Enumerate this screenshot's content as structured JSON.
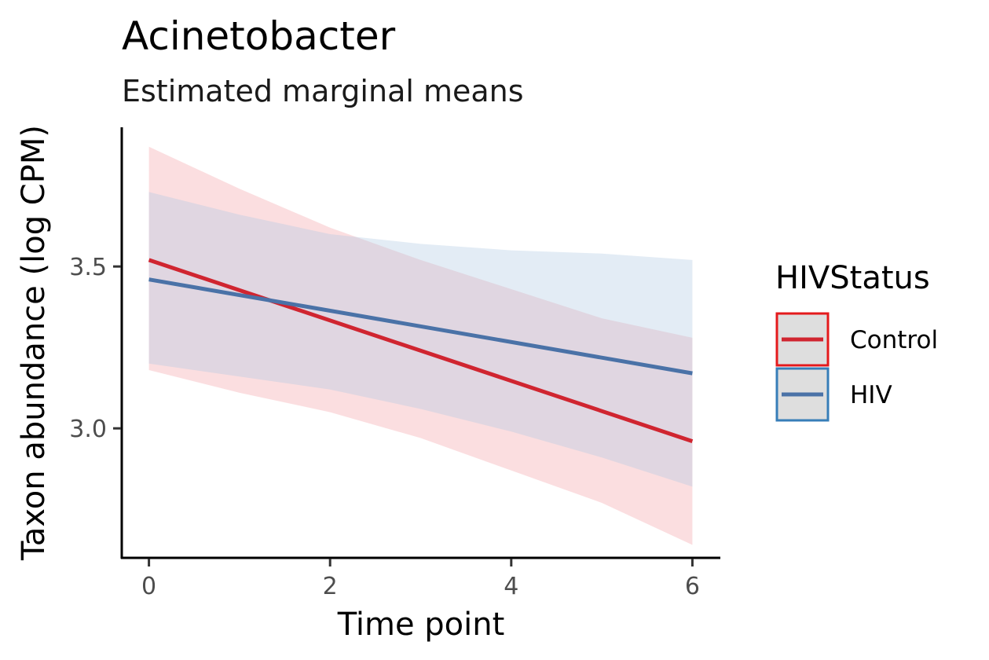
{
  "chart_data": {
    "type": "line",
    "title": "Acinetobacter",
    "subtitle": "Estimated marginal means",
    "xlabel": "Time point",
    "ylabel": "Taxon abundance (log CPM)",
    "xlim": [
      -0.3,
      6.3
    ],
    "ylim": [
      2.6,
      3.93
    ],
    "x_ticks": [
      0,
      2,
      4,
      6
    ],
    "x_tick_labels": [
      "0",
      "2",
      "4",
      "6"
    ],
    "y_ticks": [
      3.0,
      3.5
    ],
    "y_tick_labels": [
      "3.0",
      "3.5"
    ],
    "grid": false,
    "legend": {
      "title": "HIVStatus",
      "position": "right"
    },
    "series": [
      {
        "name": "Control",
        "color": "#d02530",
        "ribbon_color": "#f4a0a6",
        "legend_border": "#e41a1c",
        "x": [
          0,
          6
        ],
        "y": [
          3.52,
          2.96
        ],
        "ribbon_x": [
          0,
          1,
          2,
          3,
          4,
          5,
          6
        ],
        "ribbon_lower": [
          3.18,
          3.11,
          3.05,
          2.97,
          2.87,
          2.77,
          2.64
        ],
        "ribbon_upper": [
          3.87,
          3.74,
          3.62,
          3.52,
          3.43,
          3.34,
          3.28
        ]
      },
      {
        "name": "HIV",
        "color": "#4a72a7",
        "ribbon_color": "#aec9e2",
        "legend_border": "#377eb8",
        "x": [
          0,
          6
        ],
        "y": [
          3.46,
          3.17
        ],
        "ribbon_x": [
          0,
          1,
          2,
          3,
          4,
          5,
          6
        ],
        "ribbon_lower": [
          3.2,
          3.16,
          3.12,
          3.06,
          2.99,
          2.91,
          2.82
        ],
        "ribbon_upper": [
          3.73,
          3.66,
          3.6,
          3.57,
          3.55,
          3.54,
          3.52
        ]
      }
    ]
  }
}
